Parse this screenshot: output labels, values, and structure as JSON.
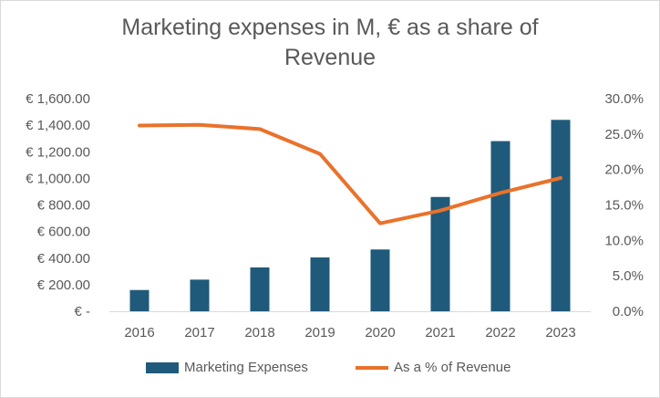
{
  "chart_data": {
    "type": "bar",
    "title_lines": [
      "Marketing expenses in M, € as a share of",
      "Revenue"
    ],
    "categories": [
      "2016",
      "2017",
      "2018",
      "2019",
      "2020",
      "2021",
      "2022",
      "2023"
    ],
    "series": [
      {
        "name": "Marketing Expenses",
        "type": "bar",
        "axis": "left",
        "color": "#1f5a7a",
        "values": [
          160,
          238,
          330,
          405,
          465,
          860,
          1280,
          1440
        ]
      },
      {
        "name": "As a % of Revenue",
        "type": "line",
        "axis": "right",
        "color": "#e9722b",
        "values": [
          26.2,
          26.3,
          25.7,
          22.2,
          12.4,
          14.2,
          16.7,
          18.8
        ]
      }
    ],
    "y_left": {
      "min": 0,
      "max": 1600,
      "ticks": [
        0,
        200,
        400,
        600,
        800,
        1000,
        1200,
        1400,
        1600
      ],
      "tick_labels": [
        "€ -",
        "€ 200.00",
        "€ 400.00",
        "€ 600.00",
        "€ 800.00",
        "€ 1,000.00",
        "€ 1,200.00",
        "€ 1,400.00",
        "€ 1,600.00"
      ]
    },
    "y_right": {
      "min": 0,
      "max": 30,
      "ticks": [
        0,
        5,
        10,
        15,
        20,
        25,
        30
      ],
      "tick_labels": [
        "0.0%",
        "5.0%",
        "10.0%",
        "15.0%",
        "20.0%",
        "25.0%",
        "30.0%"
      ]
    },
    "grid": false,
    "legend_position": "bottom"
  }
}
